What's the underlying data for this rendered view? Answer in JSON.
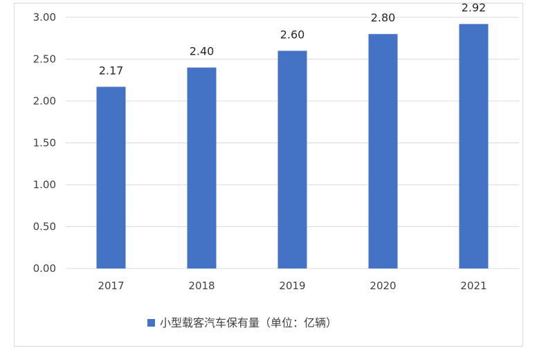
{
  "chart_data": {
    "type": "bar",
    "categories": [
      "2017",
      "2018",
      "2019",
      "2020",
      "2021"
    ],
    "series": [
      {
        "name": "小型载客汽车保有量（单位：亿辆）",
        "values": [
          2.17,
          2.4,
          2.6,
          2.8,
          2.92
        ],
        "value_labels": [
          "2.17",
          "2.40",
          "2.60",
          "2.80",
          "2.92"
        ]
      }
    ],
    "y_ticks": [
      "0.00",
      "0.50",
      "1.00",
      "1.50",
      "2.00",
      "2.50",
      "3.00"
    ],
    "ylim": [
      0,
      3.0
    ],
    "grid": true,
    "legend_position": "bottom",
    "colors": {
      "bar": "#4472c4",
      "grid": "#d9d9d9",
      "frame": "#d9d9d9"
    }
  }
}
